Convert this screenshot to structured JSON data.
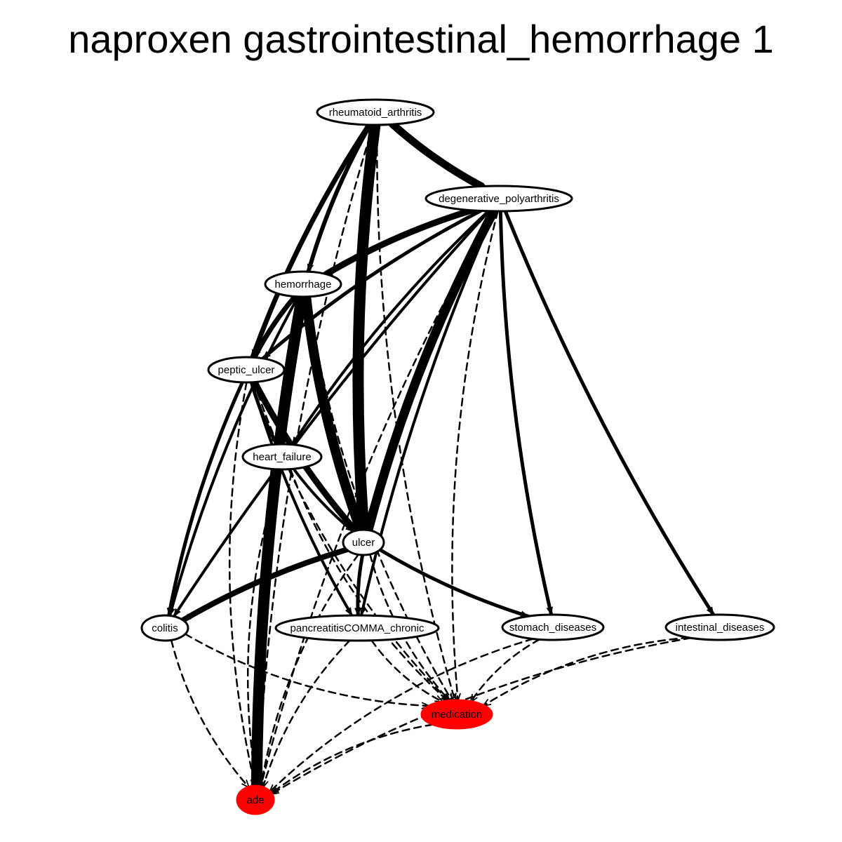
{
  "title": "naproxen gastrointestinal_hemorrhage 1",
  "colors": {
    "highlight": "#ff0000",
    "node_fill": "#ffffff",
    "stroke": "#000000"
  },
  "nodes": [
    {
      "id": "rheumatoid_arthritis",
      "label": "rheumatoid_arthritis",
      "highlight": false
    },
    {
      "id": "degenerative_polyarthritis",
      "label": "degenerative_polyarthritis",
      "highlight": false
    },
    {
      "id": "hemorrhage",
      "label": "hemorrhage",
      "highlight": false
    },
    {
      "id": "peptic_ulcer",
      "label": "peptic_ulcer",
      "highlight": false
    },
    {
      "id": "heart_failure",
      "label": "heart_failure",
      "highlight": false
    },
    {
      "id": "ulcer",
      "label": "ulcer",
      "highlight": false
    },
    {
      "id": "colitis",
      "label": "colitis",
      "highlight": false
    },
    {
      "id": "pancreatitis_chronic",
      "label": "pancreatitisCOMMA_chronic",
      "highlight": false
    },
    {
      "id": "stomach_diseases",
      "label": "stomach_diseases",
      "highlight": false
    },
    {
      "id": "intestinal_diseases",
      "label": "intestinal_diseases",
      "highlight": false
    },
    {
      "id": "medication",
      "label": "medication",
      "highlight": true
    },
    {
      "id": "ade",
      "label": "ade",
      "highlight": true
    }
  ],
  "edges": [
    {
      "from": "rheumatoid_arthritis",
      "to": "degenerative_polyarthritis",
      "style": "solid",
      "weight": 11
    },
    {
      "from": "rheumatoid_arthritis",
      "to": "hemorrhage",
      "style": "solid",
      "weight": 6
    },
    {
      "from": "rheumatoid_arthritis",
      "to": "peptic_ulcer",
      "style": "solid",
      "weight": 7
    },
    {
      "from": "rheumatoid_arthritis",
      "to": "ulcer",
      "style": "solid",
      "weight": 16
    },
    {
      "from": "rheumatoid_arthritis",
      "to": "medication",
      "style": "dashed",
      "weight": 2.5
    },
    {
      "from": "rheumatoid_arthritis",
      "to": "ade",
      "style": "dashed",
      "weight": 2.5
    },
    {
      "from": "degenerative_polyarthritis",
      "to": "hemorrhage",
      "style": "solid",
      "weight": 9
    },
    {
      "from": "degenerative_polyarthritis",
      "to": "peptic_ulcer",
      "style": "solid",
      "weight": 5
    },
    {
      "from": "degenerative_polyarthritis",
      "to": "heart_failure",
      "style": "solid",
      "weight": 4
    },
    {
      "from": "degenerative_polyarthritis",
      "to": "ulcer",
      "style": "solid",
      "weight": 13
    },
    {
      "from": "degenerative_polyarthritis",
      "to": "colitis",
      "style": "solid",
      "weight": 4
    },
    {
      "from": "degenerative_polyarthritis",
      "to": "pancreatitis_chronic",
      "style": "solid",
      "weight": 4
    },
    {
      "from": "degenerative_polyarthritis",
      "to": "stomach_diseases",
      "style": "solid",
      "weight": 5
    },
    {
      "from": "degenerative_polyarthritis",
      "to": "intestinal_diseases",
      "style": "solid",
      "weight": 5
    },
    {
      "from": "degenerative_polyarthritis",
      "to": "medication",
      "style": "dashed",
      "weight": 2.5
    },
    {
      "from": "degenerative_polyarthritis",
      "to": "ade",
      "style": "dashed",
      "weight": 2.5
    },
    {
      "from": "hemorrhage",
      "to": "peptic_ulcer",
      "style": "solid",
      "weight": 7
    },
    {
      "from": "hemorrhage",
      "to": "heart_failure",
      "style": "solid",
      "weight": 4
    },
    {
      "from": "hemorrhage",
      "to": "ulcer",
      "style": "solid",
      "weight": 14
    },
    {
      "from": "hemorrhage",
      "to": "colitis",
      "style": "solid",
      "weight": 4
    },
    {
      "from": "hemorrhage",
      "to": "medication",
      "style": "dashed",
      "weight": 2.5
    },
    {
      "from": "hemorrhage",
      "to": "ade",
      "style": "solid",
      "weight": 16
    },
    {
      "from": "peptic_ulcer",
      "to": "heart_failure",
      "style": "solid",
      "weight": 5
    },
    {
      "from": "peptic_ulcer",
      "to": "ulcer",
      "style": "solid",
      "weight": 9
    },
    {
      "from": "peptic_ulcer",
      "to": "colitis",
      "style": "solid",
      "weight": 5
    },
    {
      "from": "peptic_ulcer",
      "to": "pancreatitis_chronic",
      "style": "solid",
      "weight": 4
    },
    {
      "from": "peptic_ulcer",
      "to": "medication",
      "style": "dashed",
      "weight": 2.5
    },
    {
      "from": "peptic_ulcer",
      "to": "ade",
      "style": "dashed",
      "weight": 2.5
    },
    {
      "from": "heart_failure",
      "to": "ulcer",
      "style": "solid",
      "weight": 4
    },
    {
      "from": "heart_failure",
      "to": "medication",
      "style": "dashed",
      "weight": 2.5
    },
    {
      "from": "heart_failure",
      "to": "ade",
      "style": "dashed",
      "weight": 2.5
    },
    {
      "from": "ulcer",
      "to": "colitis",
      "style": "solid",
      "weight": 8
    },
    {
      "from": "ulcer",
      "to": "pancreatitis_chronic",
      "style": "solid",
      "weight": 5
    },
    {
      "from": "ulcer",
      "to": "stomach_diseases",
      "style": "solid",
      "weight": 5
    },
    {
      "from": "ulcer",
      "to": "medication",
      "style": "dashed",
      "weight": 2.5
    },
    {
      "from": "ulcer",
      "to": "ade",
      "style": "dashed",
      "weight": 2.5
    },
    {
      "from": "colitis",
      "to": "medication",
      "style": "dashed",
      "weight": 2.5
    },
    {
      "from": "colitis",
      "to": "ade",
      "style": "dashed",
      "weight": 2.5
    },
    {
      "from": "pancreatitis_chronic",
      "to": "medication",
      "style": "dashed",
      "weight": 2.5
    },
    {
      "from": "pancreatitis_chronic",
      "to": "ade",
      "style": "dashed",
      "weight": 2.5
    },
    {
      "from": "stomach_diseases",
      "to": "medication",
      "style": "dashed",
      "weight": 2.5
    },
    {
      "from": "stomach_diseases",
      "to": "ade",
      "style": "dashed",
      "weight": 2.5
    },
    {
      "from": "intestinal_diseases",
      "to": "medication",
      "style": "dashed",
      "weight": 2.5
    },
    {
      "from": "intestinal_diseases",
      "to": "ade",
      "style": "dashed",
      "weight": 2.5
    },
    {
      "from": "medication",
      "to": "ade",
      "style": "dashed",
      "weight": 2.5
    }
  ]
}
